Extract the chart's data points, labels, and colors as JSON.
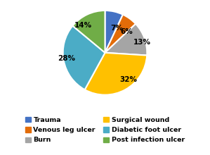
{
  "slices": [
    7,
    6,
    13,
    32,
    28,
    14
  ],
  "labels": [
    "7%",
    "6%",
    "13%",
    "32%",
    "28%",
    "14%"
  ],
  "colors": [
    "#4472C4",
    "#E36C09",
    "#A5A5A5",
    "#FFC000",
    "#4BACC6",
    "#70AD47"
  ],
  "legend_labels_col1": [
    "Trauma",
    "Burn",
    "Diabetic foot ulcer"
  ],
  "legend_labels_col2": [
    "Venous leg ulcer",
    "Surgical wound",
    "Post infection ulcer"
  ],
  "legend_colors_col1": [
    "#4472C4",
    "#A5A5A5",
    "#4BACC6"
  ],
  "legend_colors_col2": [
    "#E36C09",
    "#FFC000",
    "#70AD47"
  ],
  "startangle": 90,
  "figsize": [
    2.99,
    2.2
  ],
  "dpi": 100
}
